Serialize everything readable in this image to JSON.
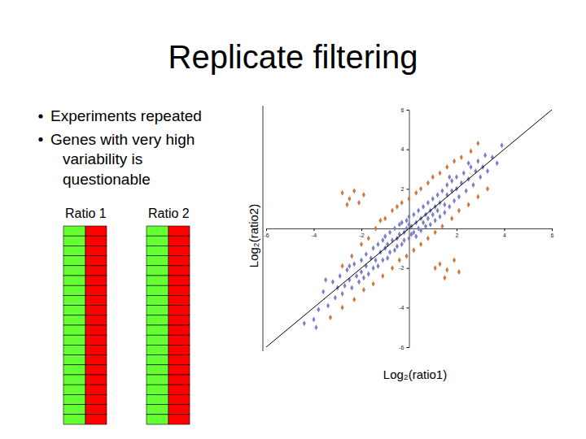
{
  "slide": {
    "title": "Replicate filtering",
    "bullets": [
      [
        "Experiments repeated"
      ],
      [
        "Genes with very high",
        "variability is",
        "questionable"
      ]
    ],
    "column_labels": [
      "Ratio 1",
      "Ratio 2"
    ]
  },
  "chart_data": {
    "type": "scatter",
    "x_label": "Log₂(ratio1)",
    "y_label": "Log₂(ratio2)",
    "xlim": [
      -6,
      6
    ],
    "ylim": [
      -6,
      6
    ],
    "xticks": [
      -6,
      -4,
      -2,
      2,
      4,
      6
    ],
    "yticks": [
      -6,
      -4,
      -2,
      2,
      4,
      6
    ],
    "series": [
      {
        "color": "#d2773a",
        "marker": "diamond",
        "x": [
          -2.8,
          -2.4,
          -2.0,
          -1.7,
          -1.4,
          -1.2,
          -1.0,
          -0.7,
          -0.5,
          -0.3,
          0.0,
          0.3,
          0.5,
          0.8,
          1.0,
          1.3,
          1.6,
          1.9,
          2.2,
          2.6,
          2.9,
          -2.8,
          -2.5,
          -2.3,
          -2.1,
          -2.6,
          -1.9,
          -3.3,
          -2.8,
          -2.3,
          -1.9,
          -1.5,
          -1.1,
          -0.7,
          -0.4,
          -0.1,
          0.2,
          0.5,
          0.8,
          1.1,
          1.4,
          1.8,
          2.1,
          2.5,
          2.9,
          3.3,
          1.3,
          1.6,
          1.9,
          1.5,
          2.1,
          1.1
        ],
        "values": [
          -1.9,
          -1.4,
          -0.8,
          -0.5,
          0.0,
          0.4,
          0.5,
          0.9,
          1.1,
          1.3,
          1.5,
          1.8,
          2.0,
          2.3,
          2.6,
          2.8,
          3.1,
          3.4,
          3.6,
          3.9,
          4.3,
          1.8,
          1.5,
          1.9,
          1.3,
          1.2,
          1.7,
          -4.5,
          -4.0,
          -3.6,
          -3.1,
          -2.8,
          -2.4,
          -2.0,
          -1.6,
          -1.4,
          -1.1,
          -0.8,
          -0.5,
          -0.2,
          0.1,
          0.5,
          0.9,
          1.2,
          1.6,
          2.0,
          -1.8,
          -2.1,
          -1.6,
          -2.5,
          -2.2,
          -2.0
        ]
      },
      {
        "color": "#7b7fc9",
        "marker": "diamond",
        "x": [
          -4.0,
          -3.8,
          -3.6,
          -3.4,
          -3.2,
          -3.1,
          -3.0,
          -2.9,
          -2.8,
          -2.7,
          -2.6,
          -2.5,
          -2.4,
          -2.3,
          -2.2,
          -2.1,
          -2.0,
          -2.0,
          -1.9,
          -1.8,
          -1.8,
          -1.7,
          -1.6,
          -1.5,
          -1.5,
          -1.4,
          -1.3,
          -1.3,
          -1.2,
          -1.1,
          -1.1,
          -1.0,
          -1.0,
          -0.9,
          -0.9,
          -0.8,
          -0.8,
          -0.7,
          -0.6,
          -0.6,
          -0.5,
          -0.5,
          -0.4,
          -0.4,
          -0.3,
          -0.3,
          -0.2,
          -0.2,
          -0.1,
          -0.1,
          0.0,
          0.0,
          0.0,
          0.1,
          0.1,
          0.2,
          0.2,
          0.3,
          0.3,
          0.4,
          0.4,
          0.5,
          0.5,
          0.6,
          0.6,
          0.7,
          0.7,
          0.8,
          0.8,
          0.9,
          0.9,
          1.0,
          1.0,
          1.1,
          1.1,
          1.2,
          1.2,
          1.3,
          1.3,
          1.4,
          1.5,
          1.5,
          1.6,
          1.6,
          1.7,
          1.8,
          1.8,
          1.9,
          2.0,
          2.0,
          2.1,
          2.2,
          2.3,
          2.4,
          2.5,
          2.6,
          2.7,
          2.8,
          2.9,
          3.0,
          3.1,
          3.2,
          3.3,
          3.5,
          3.7,
          3.9,
          -3.5,
          -2.5,
          1.7,
          2.5,
          -4.4,
          -3.9
        ],
        "values": [
          -4.6,
          -4.1,
          -3.2,
          -3.9,
          -2.7,
          -3.5,
          -3.0,
          -2.4,
          -3.3,
          -2.9,
          -2.1,
          -2.6,
          -3.0,
          -1.8,
          -2.4,
          -2.7,
          -1.6,
          -2.2,
          -2.5,
          -1.3,
          -1.9,
          -2.3,
          -1.5,
          -1.0,
          -2.0,
          -1.6,
          -0.8,
          -1.9,
          -1.2,
          -0.6,
          -1.6,
          -1.0,
          -0.4,
          -1.5,
          -0.8,
          -0.2,
          -1.2,
          -0.6,
          -1.1,
          0.0,
          -0.5,
          -0.9,
          0.2,
          -0.3,
          -0.8,
          0.3,
          -0.2,
          -0.6,
          0.4,
          0.0,
          -0.5,
          0.2,
          0.6,
          -0.3,
          0.1,
          0.7,
          -0.2,
          0.3,
          -0.4,
          0.9,
          0.0,
          0.5,
          -0.1,
          1.1,
          0.3,
          0.7,
          0.1,
          1.3,
          0.5,
          0.9,
          0.2,
          1.5,
          0.7,
          1.1,
          0.4,
          1.7,
          0.9,
          1.3,
          0.6,
          1.9,
          1.2,
          0.8,
          1.7,
          2.2,
          1.1,
          1.9,
          2.4,
          1.4,
          2.0,
          2.6,
          1.6,
          2.3,
          2.8,
          1.9,
          2.5,
          3.1,
          2.2,
          2.9,
          3.4,
          2.6,
          3.1,
          3.7,
          2.9,
          3.6,
          3.3,
          4.2,
          -2.6,
          -1.9,
          2.6,
          3.3,
          -4.8,
          -5.0
        ]
      },
      {
        "type": "line",
        "color": "#000000",
        "x": [
          -6,
          6
        ],
        "values": [
          -6,
          6
        ]
      }
    ]
  }
}
